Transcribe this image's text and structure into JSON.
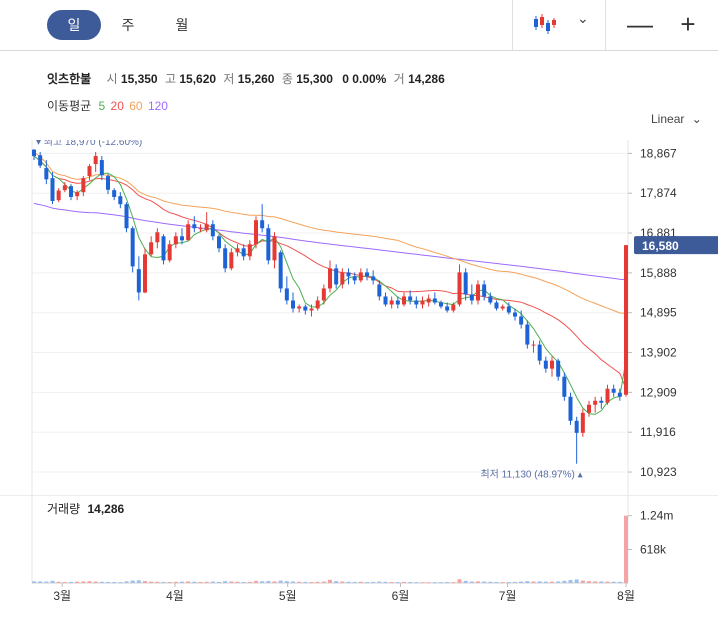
{
  "tabs": [
    {
      "label": "일",
      "active": true
    },
    {
      "label": "주",
      "active": false
    },
    {
      "label": "월",
      "active": false
    }
  ],
  "icons": {
    "chart_type": "candlestick-icon",
    "dropdown": "chevron-down-icon",
    "minus": "minus-icon",
    "plus": "plus-icon"
  },
  "window": {
    "minus": "—",
    "plus": "+"
  },
  "chevron": "⌄",
  "quote": {
    "name": "잇츠한불",
    "open_label": "시",
    "open": "15,350",
    "high_label": "고",
    "high": "15,620",
    "low_label": "저",
    "low": "15,260",
    "close_label": "종",
    "close": "15,300",
    "change": "0",
    "change_pct": "0.00%",
    "volume_label": "거",
    "volume": "14,286"
  },
  "moving_average": {
    "label": "이동평균",
    "periods": [
      {
        "value": "5",
        "color": "#4caf50"
      },
      {
        "value": "20",
        "color": "#ef5350"
      },
      {
        "value": "60",
        "color": "#f4a259"
      },
      {
        "value": "120",
        "color": "#9c6bff"
      }
    ]
  },
  "scale_mode": "Linear",
  "colors": {
    "up": "#e53935",
    "down": "#1e63d6",
    "current_badge": "#3d5a99",
    "annotation": "#5b6fa8"
  },
  "chart_data": {
    "type": "candlestick",
    "x_ticks": [
      "3월",
      "4월",
      "5월",
      "6월",
      "7월",
      "8월"
    ],
    "y_ticks": [
      "18,867",
      "17,874",
      "16,881",
      "15,888",
      "14,895",
      "13,902",
      "12,909",
      "11,916",
      "10,923"
    ],
    "ylim": [
      10600,
      19200
    ],
    "current_price": "16,580",
    "current_value": 16580,
    "max_label": "최고 18,970 (-12.60%)",
    "max_value": 18970,
    "min_label": "최저 11,130 (48.97%)",
    "min_value": 11130,
    "volume_label": "거래량",
    "volume_value": "14,286",
    "volume_ticks": [
      "1.24m",
      "618k"
    ],
    "volume_max": 1400000,
    "candles": [
      [
        18960,
        18970,
        18700,
        18800
      ],
      [
        18820,
        18900,
        18500,
        18560
      ],
      [
        18500,
        18700,
        18100,
        18220
      ],
      [
        18250,
        18400,
        17600,
        17680
      ],
      [
        17700,
        18000,
        17650,
        17940
      ],
      [
        17950,
        18150,
        17900,
        18070
      ],
      [
        18050,
        18100,
        17700,
        17780
      ],
      [
        17800,
        17950,
        17700,
        17900
      ],
      [
        17900,
        18300,
        17800,
        18250
      ],
      [
        18300,
        18600,
        18200,
        18550
      ],
      [
        18600,
        18900,
        18400,
        18800
      ],
      [
        18700,
        18800,
        18200,
        18320
      ],
      [
        18300,
        18350,
        17850,
        17960
      ],
      [
        17950,
        18000,
        17700,
        17780
      ],
      [
        17800,
        17900,
        17500,
        17600
      ],
      [
        17600,
        17650,
        16900,
        17000
      ],
      [
        17000,
        17050,
        15900,
        16050
      ],
      [
        15980,
        16300,
        15200,
        15400
      ],
      [
        15400,
        16500,
        15380,
        16350
      ],
      [
        16350,
        16800,
        16300,
        16650
      ],
      [
        16650,
        17000,
        16500,
        16900
      ],
      [
        16800,
        16850,
        16100,
        16200
      ],
      [
        16200,
        16700,
        16150,
        16600
      ],
      [
        16600,
        16900,
        16500,
        16800
      ],
      [
        16800,
        17000,
        16600,
        16700
      ],
      [
        16700,
        17200,
        16700,
        17100
      ],
      [
        17100,
        17300,
        16900,
        17000
      ],
      [
        17000,
        17100,
        16900,
        17000
      ],
      [
        16950,
        17400,
        16900,
        17100
      ],
      [
        17100,
        17200,
        16700,
        16800
      ],
      [
        16800,
        16850,
        16400,
        16500
      ],
      [
        16500,
        16600,
        15900,
        16000
      ],
      [
        16000,
        16500,
        15950,
        16400
      ],
      [
        16400,
        16600,
        16300,
        16500
      ],
      [
        16500,
        16600,
        16200,
        16300
      ],
      [
        16300,
        16700,
        16200,
        16600
      ],
      [
        16600,
        17300,
        16500,
        17200
      ],
      [
        17200,
        17600,
        16900,
        17000
      ],
      [
        17000,
        17100,
        16100,
        16200
      ],
      [
        16200,
        16900,
        16000,
        16800
      ],
      [
        16400,
        16450,
        15400,
        15500
      ],
      [
        15500,
        15800,
        15100,
        15200
      ],
      [
        15200,
        15400,
        14900,
        15000
      ],
      [
        15000,
        15100,
        14900,
        15050
      ],
      [
        15050,
        15100,
        14850,
        14950
      ],
      [
        14950,
        15100,
        14800,
        15000
      ],
      [
        15000,
        15300,
        14950,
        15200
      ],
      [
        15200,
        15600,
        15100,
        15500
      ],
      [
        15500,
        16200,
        15400,
        16000
      ],
      [
        16000,
        16100,
        15500,
        15600
      ],
      [
        15600,
        16000,
        15500,
        15900
      ],
      [
        15900,
        16000,
        15600,
        15800
      ],
      [
        15800,
        15900,
        15600,
        15700
      ],
      [
        15700,
        16000,
        15650,
        15900
      ],
      [
        15900,
        16000,
        15700,
        15800
      ],
      [
        15800,
        15950,
        15600,
        15700
      ],
      [
        15600,
        15700,
        15200,
        15300
      ],
      [
        15300,
        15400,
        15050,
        15100
      ],
      [
        15100,
        15300,
        15000,
        15200
      ],
      [
        15200,
        15300,
        15000,
        15100
      ],
      [
        15100,
        15400,
        15050,
        15300
      ],
      [
        15300,
        15450,
        15100,
        15200
      ],
      [
        15200,
        15300,
        15000,
        15100
      ],
      [
        15100,
        15300,
        15000,
        15200
      ],
      [
        15150,
        15350,
        15050,
        15250
      ],
      [
        15250,
        15400,
        15100,
        15150
      ],
      [
        15150,
        15200,
        15000,
        15050
      ],
      [
        15050,
        15150,
        14900,
        14950
      ],
      [
        14950,
        15150,
        14900,
        15100
      ],
      [
        15100,
        16100,
        15050,
        15900
      ],
      [
        15900,
        16000,
        15200,
        15350
      ],
      [
        15350,
        15600,
        15100,
        15200
      ],
      [
        15200,
        15700,
        15100,
        15600
      ],
      [
        15600,
        15700,
        15200,
        15300
      ],
      [
        15300,
        15400,
        15100,
        15150
      ],
      [
        15150,
        15200,
        14950,
        15000
      ],
      [
        15000,
        15100,
        14950,
        15050
      ],
      [
        15050,
        15150,
        14850,
        14900
      ],
      [
        14900,
        15000,
        14700,
        14800
      ],
      [
        14800,
        14950,
        14500,
        14600
      ],
      [
        14600,
        14700,
        14000,
        14100
      ],
      [
        14100,
        14200,
        13900,
        14100
      ],
      [
        14100,
        14200,
        13600,
        13700
      ],
      [
        13700,
        13800,
        13400,
        13500
      ],
      [
        13500,
        13800,
        13300,
        13700
      ],
      [
        13700,
        13750,
        13200,
        13300
      ],
      [
        13300,
        13400,
        12700,
        12800
      ],
      [
        12800,
        12900,
        12100,
        12200
      ],
      [
        12200,
        12300,
        11130,
        11900
      ],
      [
        11900,
        12500,
        11800,
        12400
      ],
      [
        12400,
        12700,
        12300,
        12600
      ],
      [
        12600,
        12800,
        12400,
        12700
      ],
      [
        12700,
        12800,
        12500,
        12650
      ],
      [
        12650,
        13100,
        12600,
        13000
      ],
      [
        13000,
        13100,
        12800,
        12900
      ],
      [
        12900,
        13000,
        12700,
        12800
      ],
      [
        12850,
        16580,
        12800,
        16580
      ]
    ],
    "volumes": [
      30000,
      28000,
      25000,
      40000,
      22000,
      18000,
      20000,
      26000,
      30000,
      35000,
      28000,
      22000,
      20000,
      18000,
      16000,
      30000,
      45000,
      50000,
      35000,
      25000,
      22000,
      20000,
      18000,
      22000,
      25000,
      30000,
      24000,
      20000,
      22000,
      26000,
      20000,
      35000,
      28000,
      22000,
      18000,
      20000,
      40000,
      32000,
      38000,
      30000,
      45000,
      35000,
      28000,
      22000,
      20000,
      18000,
      22000,
      26000,
      60000,
      35000,
      28000,
      24000,
      20000,
      22000,
      18000,
      20000,
      26000,
      22000,
      18000,
      16000,
      20000,
      18000,
      16000,
      15000,
      14000,
      16000,
      15000,
      18000,
      16000,
      70000,
      40000,
      28000,
      30000,
      26000,
      22000,
      18000,
      16000,
      18000,
      20000,
      26000,
      35000,
      28000,
      30000,
      26000,
      24000,
      28000,
      40000,
      55000,
      65000,
      45000,
      35000,
      30000,
      28000,
      26000,
      24000,
      22000,
      1240000
    ]
  }
}
